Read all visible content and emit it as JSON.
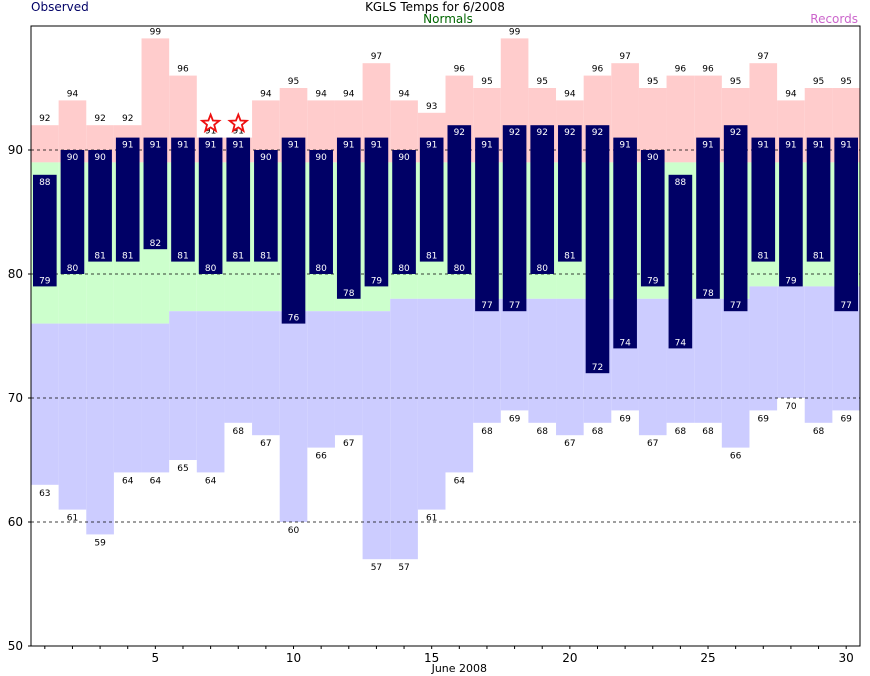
{
  "chart_data": {
    "type": "bar",
    "title": "KGLS Temps for 6/2008",
    "legend": {
      "observed": "Observed",
      "normals": "Normals",
      "records": "Records"
    },
    "xlabel": "June 2008",
    "xlim": [
      0.5,
      30.5
    ],
    "x_ticks": [
      5,
      10,
      15,
      20,
      25,
      30
    ],
    "ylim": [
      50,
      100
    ],
    "y_ticks": [
      50,
      60,
      70,
      80,
      90
    ],
    "grid_lines": [
      60,
      70,
      80,
      90
    ],
    "days": [
      1,
      2,
      3,
      4,
      5,
      6,
      7,
      8,
      9,
      10,
      11,
      12,
      13,
      14,
      15,
      16,
      17,
      18,
      19,
      20,
      21,
      22,
      23,
      24,
      25,
      26,
      27,
      28,
      29,
      30
    ],
    "series": [
      {
        "name": "Observed High",
        "values": [
          88,
          90,
          90,
          91,
          91,
          91,
          91,
          91,
          90,
          91,
          90,
          91,
          91,
          90,
          91,
          92,
          91,
          92,
          92,
          92,
          92,
          91,
          90,
          88,
          91,
          92,
          91,
          91,
          91,
          91
        ]
      },
      {
        "name": "Observed Low",
        "values": [
          79,
          80,
          81,
          81,
          82,
          81,
          80,
          81,
          81,
          76,
          80,
          78,
          79,
          80,
          81,
          80,
          77,
          77,
          80,
          81,
          72,
          74,
          79,
          74,
          78,
          77,
          81,
          79,
          81,
          77
        ]
      },
      {
        "name": "Normal High",
        "values": [
          89,
          89,
          89,
          89,
          89,
          89,
          89,
          89,
          89,
          89,
          89,
          89,
          89,
          89,
          89,
          89,
          89,
          89,
          89,
          89,
          89,
          89,
          89,
          89,
          89,
          89,
          89,
          89,
          89,
          89
        ]
      },
      {
        "name": "Normal Low",
        "values": [
          76,
          76,
          76,
          76,
          76,
          77,
          77,
          77,
          77,
          77,
          77,
          77,
          77,
          78,
          78,
          78,
          78,
          78,
          78,
          78,
          78,
          78,
          78,
          78,
          78,
          78,
          79,
          79,
          79,
          79
        ]
      },
      {
        "name": "Record High",
        "values": [
          92,
          94,
          92,
          92,
          99,
          96,
          91,
          91,
          94,
          95,
          94,
          94,
          97,
          94,
          93,
          96,
          95,
          99,
          95,
          94,
          96,
          97,
          95,
          96,
          96,
          95,
          97,
          94,
          95,
          95
        ]
      },
      {
        "name": "Record Low",
        "values": [
          63,
          61,
          59,
          64,
          64,
          65,
          64,
          68,
          67,
          60,
          66,
          67,
          57,
          57,
          61,
          64,
          68,
          69,
          68,
          67,
          68,
          69,
          67,
          68,
          68,
          66,
          69,
          70,
          68,
          69
        ]
      }
    ],
    "record_marker_days": [
      7,
      8
    ],
    "colors": {
      "observed": "#000066",
      "normals_band": "#ccffcc",
      "normals_text": "#006600",
      "record_high_band": "#ffcccc",
      "record_low_band": "#ccccff",
      "records_text": "#cc66cc",
      "record_marker": "#ee1111",
      "grid": "#000000"
    }
  }
}
